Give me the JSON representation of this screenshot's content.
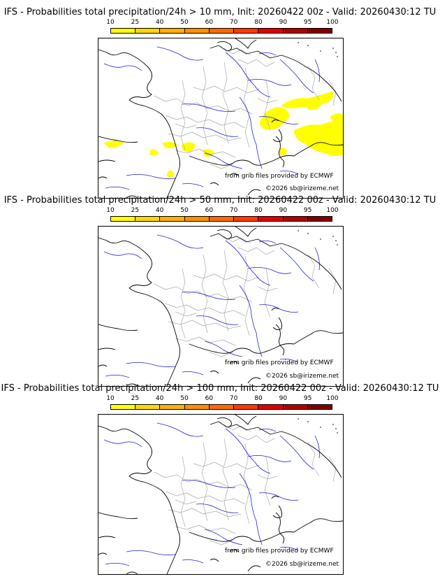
{
  "panels": [
    {
      "title": "IFS - Probabilities total precipitation/24h > 10 mm, Init: 20260422 00z - Valid: 20260430:12 TU",
      "has_rain": true
    },
    {
      "title": "IFS - Probabilities total precipitation/24h > 50 mm, Init: 20260422 00z - Valid: 20260430:12 TU",
      "has_rain": false
    },
    {
      "title": "IFS - Probabilities total precipitation/24h > 100 mm, Init: 20260422 00z - Valid: 20260430:12 TU",
      "has_rain": false
    }
  ],
  "colorbar": {
    "ticks": [
      "10",
      "25",
      "40",
      "50",
      "60",
      "70",
      "80",
      "90",
      "95",
      "100"
    ],
    "colors": [
      "#ffff00",
      "#ffd800",
      "#ffb000",
      "#ff9000",
      "#ff6a00",
      "#ff3a00",
      "#e00000",
      "#b00000",
      "#800000"
    ]
  },
  "credits": {
    "source": "from grib files provided by ECMWF",
    "copyright": "©2026 sb@irizeme.net"
  },
  "map_colors": {
    "coast": "#000000",
    "rivers": "#2020dd",
    "borders": "#aaaaaa",
    "rain": "#ffff00"
  }
}
